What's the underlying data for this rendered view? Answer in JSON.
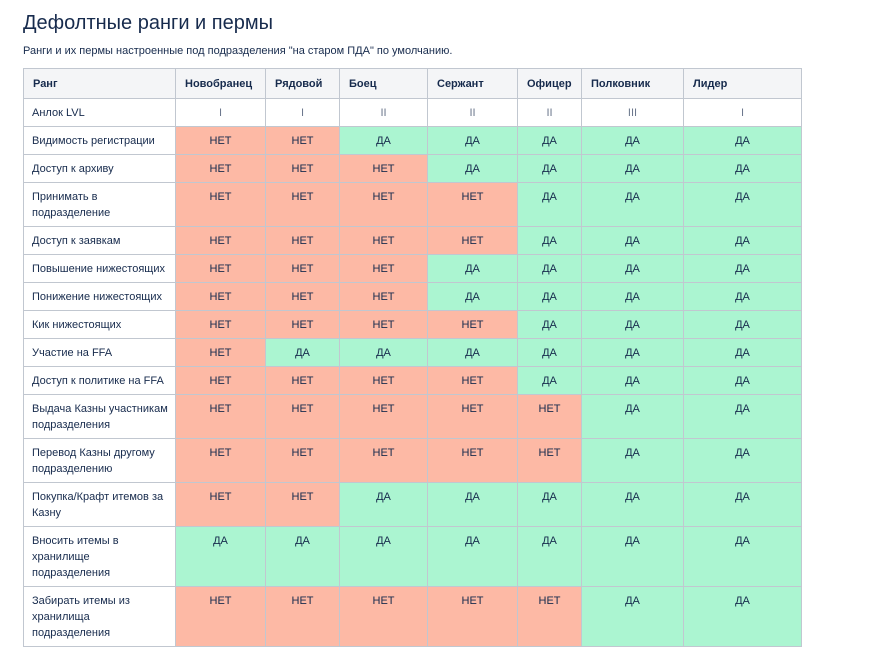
{
  "title": "Дефолтные ранги и пермы",
  "subtitle": "Ранги и их пермы настроенные под подразделения \"на старом ПДА\" по умолчанию.",
  "table": {
    "headers": [
      "Ранг",
      "Новобранец",
      "Рядовой",
      "Боец",
      "Сержант",
      "Офицер",
      "Полковник",
      "Лидер"
    ],
    "level_row": {
      "label": "Анлок LVL",
      "values": [
        "I",
        "I",
        "II",
        "II",
        "II",
        "III",
        "I"
      ]
    },
    "rows": [
      {
        "label": "Видимость регистрации",
        "values": [
          "НЕТ",
          "НЕТ",
          "ДА",
          "ДА",
          "ДА",
          "ДА",
          "ДА"
        ]
      },
      {
        "label": "Доступ к архиву",
        "values": [
          "НЕТ",
          "НЕТ",
          "НЕТ",
          "ДА",
          "ДА",
          "ДА",
          "ДА"
        ]
      },
      {
        "label": "Принимать в подразделение",
        "values": [
          "НЕТ",
          "НЕТ",
          "НЕТ",
          "НЕТ",
          "ДА",
          "ДА",
          "ДА"
        ]
      },
      {
        "label": "Доступ к заявкам",
        "values": [
          "НЕТ",
          "НЕТ",
          "НЕТ",
          "НЕТ",
          "ДА",
          "ДА",
          "ДА"
        ]
      },
      {
        "label": "Повышение нижестоящих",
        "values": [
          "НЕТ",
          "НЕТ",
          "НЕТ",
          "ДА",
          "ДА",
          "ДА",
          "ДА"
        ]
      },
      {
        "label": "Понижение нижестоящих",
        "values": [
          "НЕТ",
          "НЕТ",
          "НЕТ",
          "ДА",
          "ДА",
          "ДА",
          "ДА"
        ]
      },
      {
        "label": "Кик нижестоящих",
        "values": [
          "НЕТ",
          "НЕТ",
          "НЕТ",
          "НЕТ",
          "ДА",
          "ДА",
          "ДА"
        ]
      },
      {
        "label": "Участие на FFA",
        "values": [
          "НЕТ",
          "ДА",
          "ДА",
          "ДА",
          "ДА",
          "ДА",
          "ДА"
        ]
      },
      {
        "label": "Доступ к политике на FFA",
        "values": [
          "НЕТ",
          "НЕТ",
          "НЕТ",
          "НЕТ",
          "ДА",
          "ДА",
          "ДА"
        ]
      },
      {
        "label": "Выдача Казны участникам подразделения",
        "values": [
          "НЕТ",
          "НЕТ",
          "НЕТ",
          "НЕТ",
          "НЕТ",
          "ДА",
          "ДА"
        ]
      },
      {
        "label": "Перевод Казны другому подразделению",
        "values": [
          "НЕТ",
          "НЕТ",
          "НЕТ",
          "НЕТ",
          "НЕТ",
          "ДА",
          "ДА"
        ]
      },
      {
        "label": "Покупка/Крафт итемов за Казну",
        "values": [
          "НЕТ",
          "НЕТ",
          "ДА",
          "ДА",
          "ДА",
          "ДА",
          "ДА"
        ]
      },
      {
        "label": "Вносить итемы в хранилище подразделения",
        "values": [
          "ДА",
          "ДА",
          "ДА",
          "ДА",
          "ДА",
          "ДА",
          "ДА"
        ]
      },
      {
        "label": "Забирать итемы из хранилища подразделения",
        "values": [
          "НЕТ",
          "НЕТ",
          "НЕТ",
          "НЕТ",
          "НЕТ",
          "ДА",
          "ДА"
        ]
      }
    ]
  },
  "colors": {
    "no": "#fdb9a5",
    "yes": "#abf5d1",
    "header_bg": "#f4f5f7",
    "border": "#c1c7d0",
    "text": "#172b4d"
  }
}
